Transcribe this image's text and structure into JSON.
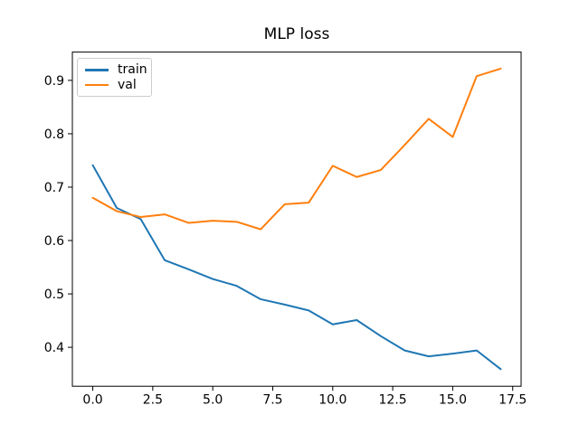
{
  "chart_data": {
    "type": "line",
    "title": "MLP loss",
    "xlabel": "",
    "ylabel": "",
    "grid": false,
    "background": "#ffffff",
    "axes_color": "#000000",
    "x": [
      0,
      1,
      2,
      3,
      4,
      5,
      6,
      7,
      8,
      9,
      10,
      11,
      12,
      13,
      14,
      15,
      16,
      17
    ],
    "series": [
      {
        "name": "train",
        "color": "#1f77b4",
        "values": [
          0.741,
          0.661,
          0.64,
          0.563,
          0.546,
          0.528,
          0.515,
          0.49,
          0.48,
          0.469,
          0.443,
          0.451,
          0.421,
          0.394,
          0.383,
          0.388,
          0.394,
          0.359
        ]
      },
      {
        "name": "val",
        "color": "#ff7f0e",
        "values": [
          0.68,
          0.655,
          0.644,
          0.649,
          0.633,
          0.637,
          0.635,
          0.621,
          0.668,
          0.671,
          0.74,
          0.719,
          0.732,
          0.779,
          0.828,
          0.794,
          0.908,
          0.922
        ]
      }
    ],
    "xlim": [
      -0.85,
      17.85
    ],
    "ylim": [
      0.327,
      0.953
    ],
    "xticks": [
      0.0,
      2.5,
      5.0,
      7.5,
      10.0,
      12.5,
      15.0,
      17.5
    ],
    "xtick_labels": [
      "0.0",
      "2.5",
      "5.0",
      "7.5",
      "10.0",
      "12.5",
      "15.0",
      "17.5"
    ],
    "yticks": [
      0.4,
      0.5,
      0.6,
      0.7,
      0.8,
      0.9
    ],
    "ytick_labels": [
      "0.4",
      "0.5",
      "0.6",
      "0.7",
      "0.8",
      "0.9"
    ],
    "legend": {
      "position": "upper-left",
      "entries": [
        "train",
        "val"
      ]
    }
  }
}
